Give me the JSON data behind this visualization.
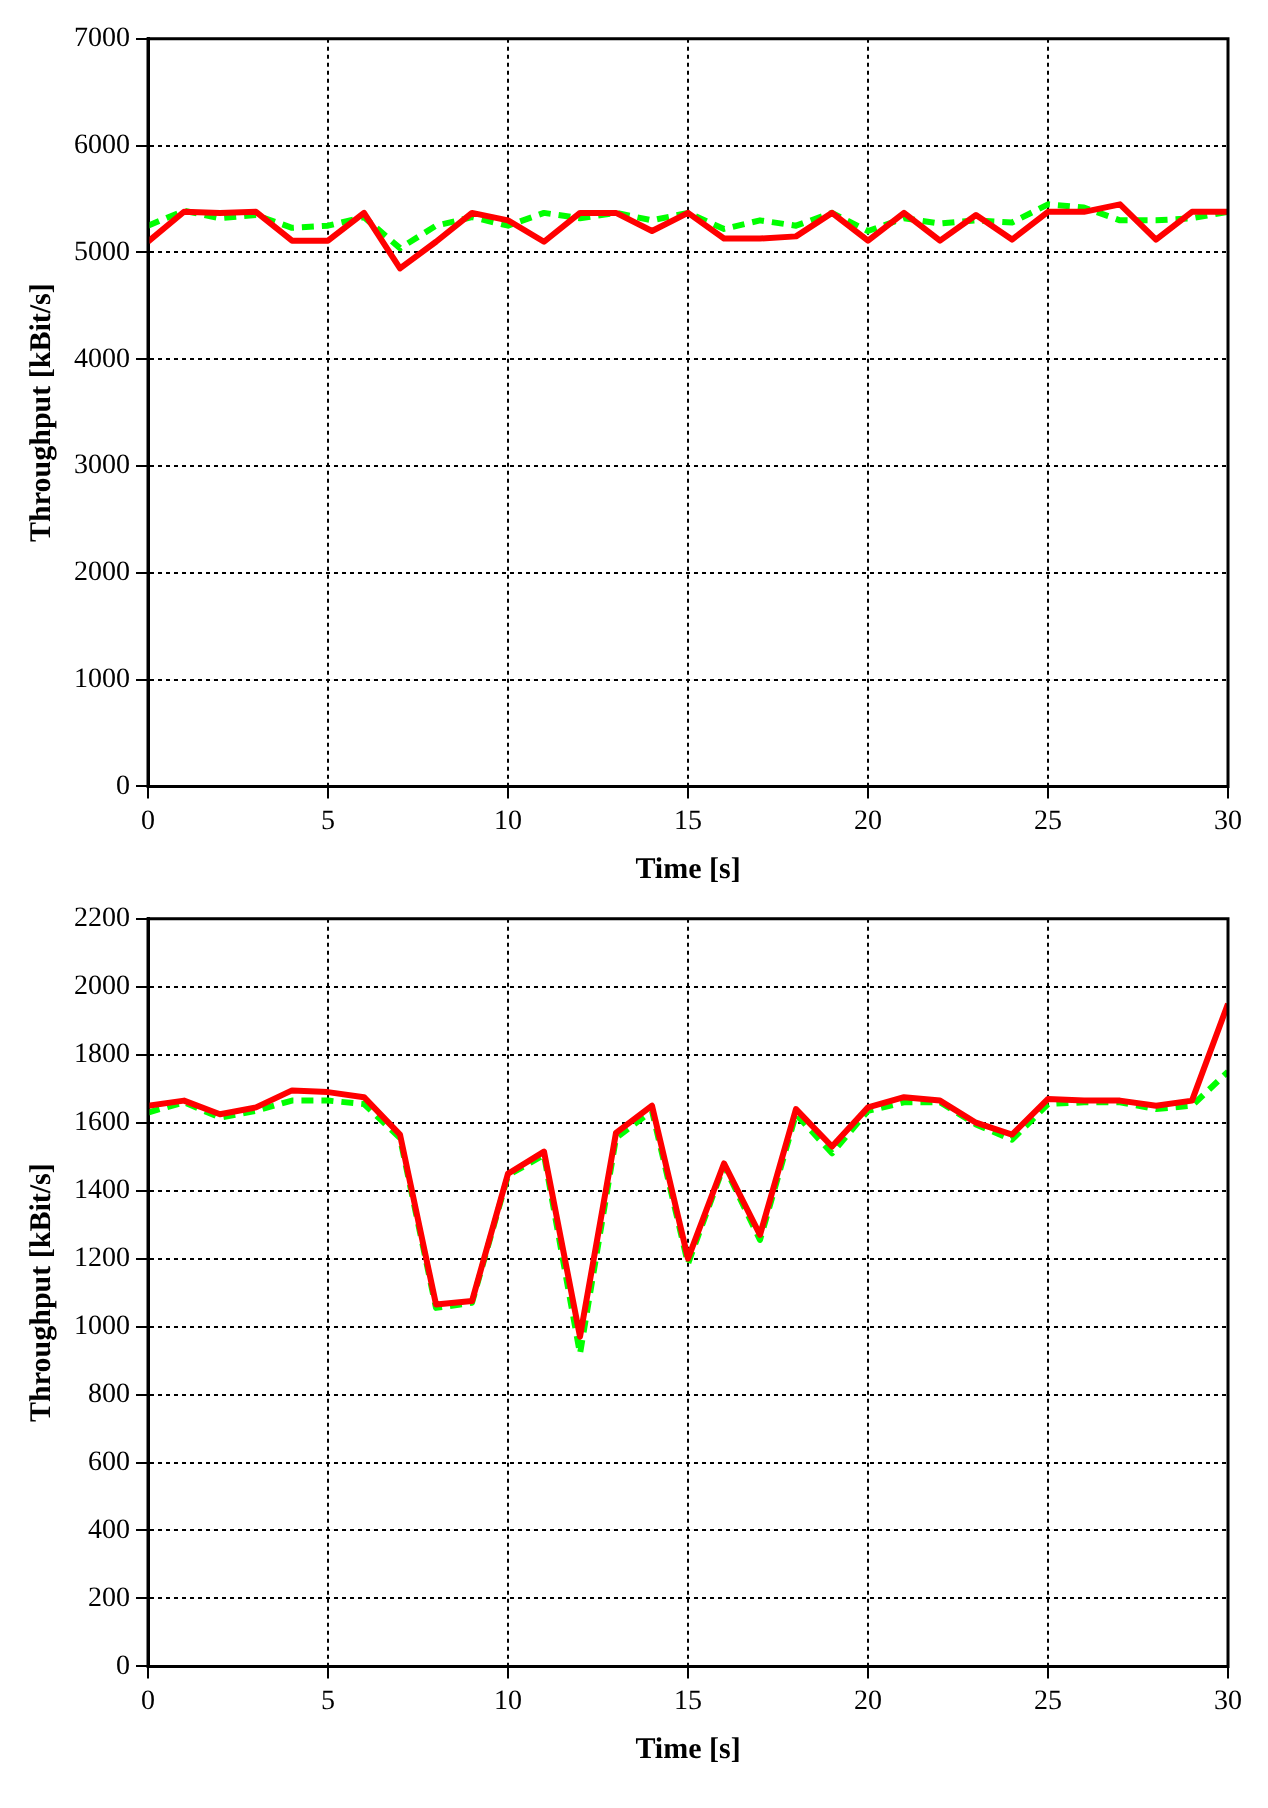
{
  "chart_data": [
    {
      "type": "line",
      "xlabel": "Time [s]",
      "ylabel": "Throughput [kBit/s]",
      "x": [
        0,
        1,
        2,
        3,
        4,
        5,
        6,
        7,
        8,
        9,
        10,
        11,
        12,
        13,
        14,
        15,
        16,
        17,
        18,
        19,
        20,
        21,
        22,
        23,
        24,
        25,
        26,
        27,
        28,
        29,
        30
      ],
      "xlim": [
        0,
        30
      ],
      "xticks": [
        0,
        5,
        10,
        15,
        20,
        25,
        30
      ],
      "ylim": [
        0,
        7000
      ],
      "yticks": [
        0,
        1000,
        2000,
        3000,
        4000,
        5000,
        6000,
        7000
      ],
      "grid": true,
      "marker": "none",
      "series": [
        {
          "color": "#ff0000",
          "line_style": "solid",
          "values": [
            5100,
            5380,
            5370,
            5380,
            5110,
            5110,
            5370,
            4850,
            5100,
            5370,
            5300,
            5100,
            5370,
            5370,
            5200,
            5370,
            5130,
            5130,
            5150,
            5370,
            5110,
            5370,
            5110,
            5350,
            5120,
            5380,
            5380,
            5450,
            5120,
            5380,
            5380
          ]
        },
        {
          "color": "#00ff00",
          "line_style": "dashed",
          "values": [
            5250,
            5390,
            5320,
            5350,
            5230,
            5250,
            5330,
            5040,
            5250,
            5330,
            5250,
            5370,
            5320,
            5370,
            5300,
            5370,
            5220,
            5300,
            5250,
            5370,
            5200,
            5320,
            5270,
            5300,
            5280,
            5450,
            5420,
            5300,
            5300,
            5320,
            5380
          ]
        }
      ]
    },
    {
      "type": "line",
      "xlabel": "Time [s]",
      "ylabel": "Throughput [kBit/s]",
      "x": [
        0,
        1,
        2,
        3,
        4,
        5,
        6,
        7,
        8,
        9,
        10,
        11,
        12,
        13,
        14,
        15,
        16,
        17,
        18,
        19,
        20,
        21,
        22,
        23,
        24,
        25,
        26,
        27,
        28,
        29,
        30
      ],
      "xlim": [
        0,
        30
      ],
      "xticks": [
        0,
        5,
        10,
        15,
        20,
        25,
        30
      ],
      "ylim": [
        0,
        2200
      ],
      "yticks": [
        0,
        200,
        400,
        600,
        800,
        1000,
        1200,
        1400,
        1600,
        1800,
        2000,
        2200
      ],
      "grid": true,
      "marker": "none",
      "series": [
        {
          "color": "#ff0000",
          "line_style": "solid",
          "values": [
            1650,
            1665,
            1625,
            1645,
            1695,
            1690,
            1675,
            1565,
            1065,
            1075,
            1450,
            1515,
            970,
            1570,
            1650,
            1200,
            1480,
            1270,
            1640,
            1530,
            1645,
            1675,
            1665,
            1600,
            1565,
            1670,
            1665,
            1665,
            1650,
            1665,
            1950
          ]
        },
        {
          "color": "#00ff00",
          "line_style": "dashed",
          "values": [
            1630,
            1660,
            1615,
            1635,
            1665,
            1665,
            1655,
            1555,
            1055,
            1070,
            1445,
            1505,
            920,
            1555,
            1635,
            1185,
            1475,
            1255,
            1625,
            1510,
            1635,
            1660,
            1660,
            1595,
            1550,
            1655,
            1660,
            1660,
            1640,
            1650,
            1750
          ]
        }
      ]
    }
  ]
}
